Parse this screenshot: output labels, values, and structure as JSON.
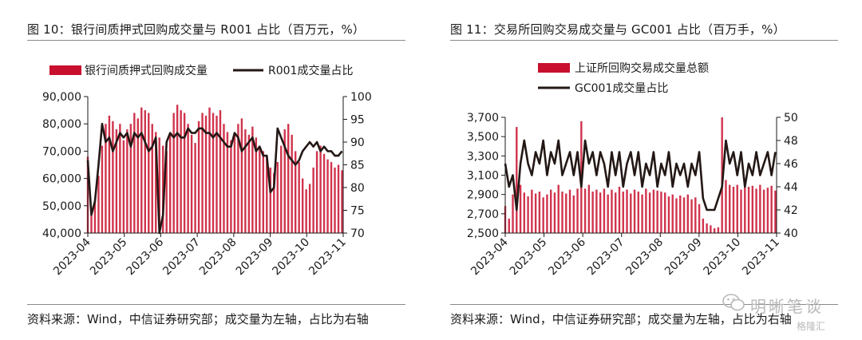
{
  "figures": [
    {
      "title": "图 10：银行间质押式回购成交量与 R001 占比（百万元，%）",
      "source": "资料来源：Wind，中信证券研究部；成交量为左轴，占比为右轴"
    },
    {
      "title": "图 11：交易所回购交易成交量与 GC001 占比（百万手，%）",
      "source": "资料来源：Wind，中信证券研究部；成交量为左轴，占比为右轴"
    }
  ],
  "watermark": {
    "text": "明晰笔谈",
    "sub": "格隆汇"
  },
  "colors": {
    "bar": "#c8102e",
    "line": "#231815",
    "axis": "#1a1a1a"
  },
  "chart_data": [
    {
      "type": "bar+line",
      "legend": [
        "银行间质押式回购成交量",
        "R001成交量占比"
      ],
      "x_ticks": [
        "2023-04",
        "2023-05",
        "2023-06",
        "2023-07",
        "2023-08",
        "2023-09",
        "2023-10",
        "2023-11"
      ],
      "ylim_left": [
        40000,
        90000
      ],
      "yticks_left": [
        "40,000",
        "50,000",
        "60,000",
        "70,000",
        "80,000",
        "90,000"
      ],
      "ylim_right": [
        70,
        100
      ],
      "yticks_right": [
        "70",
        "75",
        "80",
        "85",
        "90",
        "95",
        "100"
      ],
      "series": [
        {
          "name": "银行间质押式回购成交量",
          "axis": "left",
          "kind": "bar",
          "x": [
            "04-01",
            "04-04",
            "04-07",
            "04-10",
            "04-13",
            "04-16",
            "04-19",
            "04-22",
            "04-25",
            "04-28",
            "05-01",
            "05-04",
            "05-07",
            "05-10",
            "05-13",
            "05-16",
            "05-19",
            "05-22",
            "05-25",
            "05-28",
            "05-31",
            "06-03",
            "06-06",
            "06-09",
            "06-12",
            "06-15",
            "06-18",
            "06-21",
            "06-24",
            "06-27",
            "06-30",
            "07-03",
            "07-06",
            "07-09",
            "07-12",
            "07-15",
            "07-18",
            "07-21",
            "07-24",
            "07-27",
            "07-30",
            "08-02",
            "08-05",
            "08-08",
            "08-11",
            "08-14",
            "08-17",
            "08-20",
            "08-23",
            "08-26",
            "08-29",
            "09-01",
            "09-04",
            "09-07",
            "09-10",
            "09-13",
            "09-16",
            "09-19",
            "09-22",
            "09-25",
            "09-28",
            "10-01",
            "10-04",
            "10-07",
            "10-10",
            "10-13",
            "10-16",
            "10-19",
            "10-22",
            "10-25",
            "10-28",
            "10-31"
          ],
          "values": [
            68000,
            48000,
            52000,
            61000,
            72000,
            80000,
            83000,
            81000,
            78000,
            80000,
            74000,
            78000,
            80000,
            84000,
            82000,
            86000,
            85000,
            84000,
            80000,
            77000,
            75000,
            72000,
            70000,
            76000,
            84000,
            87000,
            85000,
            84000,
            80000,
            76000,
            73000,
            81000,
            84000,
            83000,
            86000,
            84000,
            83000,
            85000,
            80000,
            77000,
            74000,
            76000,
            80000,
            82000,
            78000,
            76000,
            79000,
            75000,
            72000,
            70000,
            68000,
            64000,
            62000,
            66000,
            72000,
            78000,
            80000,
            76000,
            70000,
            66000,
            60000,
            56000,
            58000,
            64000,
            70000,
            72000,
            69000,
            67000,
            66000,
            64000,
            65000,
            63000
          ]
        },
        {
          "name": "R001成交量占比",
          "axis": "right",
          "kind": "line",
          "x": [
            "04-01",
            "04-04",
            "04-07",
            "04-10",
            "04-13",
            "04-16",
            "04-19",
            "04-22",
            "04-25",
            "04-28",
            "05-01",
            "05-04",
            "05-07",
            "05-10",
            "05-13",
            "05-16",
            "05-19",
            "05-22",
            "05-25",
            "05-28",
            "05-31",
            "06-03",
            "06-06",
            "06-09",
            "06-12",
            "06-15",
            "06-18",
            "06-21",
            "06-24",
            "06-27",
            "06-30",
            "07-03",
            "07-06",
            "07-09",
            "07-12",
            "07-15",
            "07-18",
            "07-21",
            "07-24",
            "07-27",
            "07-30",
            "08-02",
            "08-05",
            "08-08",
            "08-11",
            "08-14",
            "08-17",
            "08-20",
            "08-23",
            "08-26",
            "08-29",
            "09-01",
            "09-04",
            "09-07",
            "09-10",
            "09-13",
            "09-16",
            "09-19",
            "09-22",
            "09-25",
            "09-28",
            "10-01",
            "10-04",
            "10-07",
            "10-10",
            "10-13",
            "10-16",
            "10-19",
            "10-22",
            "10-25",
            "10-28",
            "10-31"
          ],
          "values": [
            86,
            74,
            77,
            85,
            94,
            90,
            91,
            88,
            90,
            92,
            91,
            92,
            89,
            92,
            91,
            92,
            90,
            88,
            89,
            91,
            70,
            74,
            90,
            92,
            91,
            92,
            91,
            91,
            93,
            92,
            92,
            93,
            93,
            92,
            92,
            91,
            92,
            91,
            90,
            89,
            89,
            92,
            91,
            88,
            89,
            90,
            91,
            88,
            89,
            87,
            87,
            79,
            80,
            93,
            91,
            89,
            87,
            86,
            85,
            86,
            88,
            89,
            90,
            89,
            90,
            88,
            89,
            88,
            88,
            87,
            87,
            88
          ]
        }
      ]
    },
    {
      "type": "bar+line",
      "legend": [
        "上证所回购交易成交量总额",
        "GC001成交量占比"
      ],
      "x_ticks": [
        "2023-04",
        "2023-05",
        "2023-06",
        "2023-07",
        "2023-08",
        "2023-09",
        "2023-10",
        "2023-11"
      ],
      "ylim_left": [
        2500,
        3700
      ],
      "yticks_left": [
        "2,500",
        "2,700",
        "2,900",
        "3,100",
        "3,300",
        "3,500",
        "3,700"
      ],
      "ylim_right": [
        40,
        50
      ],
      "yticks_right": [
        "40",
        "42",
        "44",
        "46",
        "48",
        "50"
      ],
      "series": [
        {
          "name": "上证所回购交易成交量总额",
          "axis": "left",
          "kind": "bar",
          "x": [
            "04-01",
            "04-04",
            "04-07",
            "04-10",
            "04-13",
            "04-16",
            "04-19",
            "04-22",
            "04-25",
            "04-28",
            "05-01",
            "05-04",
            "05-07",
            "05-10",
            "05-13",
            "05-16",
            "05-19",
            "05-22",
            "05-25",
            "05-28",
            "05-31",
            "06-03",
            "06-06",
            "06-09",
            "06-12",
            "06-15",
            "06-18",
            "06-21",
            "06-24",
            "06-27",
            "06-30",
            "07-03",
            "07-06",
            "07-09",
            "07-12",
            "07-15",
            "07-18",
            "07-21",
            "07-24",
            "07-27",
            "07-30",
            "08-02",
            "08-05",
            "08-08",
            "08-11",
            "08-14",
            "08-17",
            "08-20",
            "08-23",
            "08-26",
            "08-29",
            "09-01",
            "09-04",
            "09-07",
            "09-10",
            "09-13",
            "09-16",
            "09-19",
            "09-22",
            "09-25",
            "09-28",
            "10-01",
            "10-04",
            "10-07",
            "10-10",
            "10-13",
            "10-16",
            "10-19",
            "10-22",
            "10-25",
            "10-28",
            "10-31"
          ],
          "values": [
            2780,
            2650,
            2900,
            3600,
            3000,
            2920,
            2880,
            2950,
            2910,
            2930,
            2870,
            2900,
            2950,
            2920,
            3000,
            2930,
            2910,
            2950,
            2890,
            2960,
            3660,
            2960,
            3000,
            2930,
            2950,
            2920,
            2960,
            2900,
            2950,
            2920,
            2980,
            2930,
            2950,
            2910,
            2950,
            2930,
            2900,
            2960,
            2920,
            2950,
            2940,
            2930,
            2920,
            2880,
            2900,
            2860,
            2890,
            2870,
            2900,
            2850,
            2870,
            2800,
            2650,
            2600,
            2580,
            2550,
            2560,
            3700,
            3050,
            3000,
            2980,
            3000,
            2950,
            3020,
            2980,
            2990,
            2960,
            3000,
            2950,
            2970,
            2990,
            2940
          ]
        },
        {
          "name": "GC001成交量占比",
          "axis": "right",
          "kind": "line",
          "x": [
            "04-01",
            "04-04",
            "04-07",
            "04-10",
            "04-13",
            "04-16",
            "04-19",
            "04-22",
            "04-25",
            "04-28",
            "05-01",
            "05-04",
            "05-07",
            "05-10",
            "05-13",
            "05-16",
            "05-19",
            "05-22",
            "05-25",
            "05-28",
            "05-31",
            "06-03",
            "06-06",
            "06-09",
            "06-12",
            "06-15",
            "06-18",
            "06-21",
            "06-24",
            "06-27",
            "06-30",
            "07-03",
            "07-06",
            "07-09",
            "07-12",
            "07-15",
            "07-18",
            "07-21",
            "07-24",
            "07-27",
            "07-30",
            "08-02",
            "08-05",
            "08-08",
            "08-11",
            "08-14",
            "08-17",
            "08-20",
            "08-23",
            "08-26",
            "08-29",
            "09-01",
            "09-04",
            "09-07",
            "09-10",
            "09-13",
            "09-16",
            "09-19",
            "09-22",
            "09-25",
            "09-28",
            "10-01",
            "10-04",
            "10-07",
            "10-10",
            "10-13",
            "10-16",
            "10-19",
            "10-22",
            "10-25",
            "10-28",
            "10-31"
          ],
          "values": [
            46,
            44,
            45,
            42,
            46,
            48,
            46,
            45,
            47,
            46,
            48,
            45,
            47,
            46,
            48,
            45,
            46,
            47,
            45,
            47,
            44,
            48,
            46,
            47,
            45,
            47,
            46,
            44,
            47,
            45,
            47,
            44,
            46,
            47,
            45,
            47,
            44,
            46,
            45,
            47,
            44,
            46,
            45,
            47,
            44,
            46,
            45,
            46,
            44,
            46,
            45,
            47,
            43,
            42,
            42,
            42,
            43,
            44,
            48,
            46,
            47,
            45,
            47,
            44,
            46,
            45,
            47,
            45,
            46,
            47,
            45,
            47
          ]
        }
      ]
    }
  ]
}
